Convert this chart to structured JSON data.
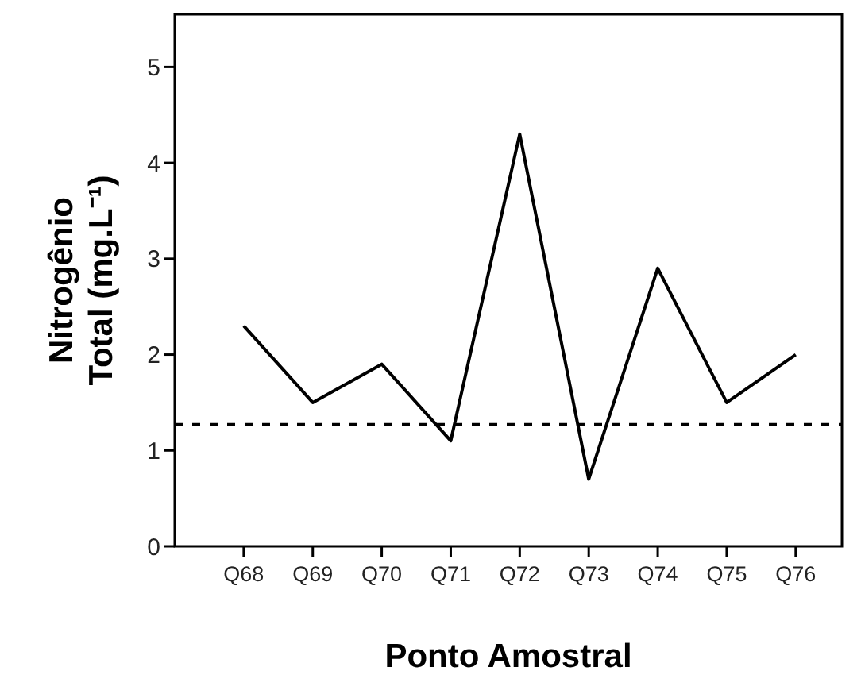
{
  "chart_data": {
    "type": "line",
    "xlabel": "Ponto Amostral",
    "ylabel": "Nitrogênio\nTotal (mg.L⁻¹)",
    "categories": [
      "Q68",
      "Q69",
      "Q70",
      "Q71",
      "Q72",
      "Q73",
      "Q74",
      "Q75",
      "Q76"
    ],
    "series": [
      {
        "color": "#000000",
        "values": [
          2.3,
          1.5,
          1.9,
          1.1,
          4.3,
          0.7,
          2.9,
          1.5,
          2.0
        ]
      }
    ],
    "ylim": [
      0,
      5.55
    ],
    "yticks": [
      0,
      1,
      2,
      3,
      4,
      5
    ],
    "grid": false,
    "marker": "none",
    "line_style": "solid",
    "ref_lines": [
      {
        "axis": "y",
        "value": 1.27,
        "color": "#000000",
        "line_style": "dashed"
      }
    ]
  }
}
